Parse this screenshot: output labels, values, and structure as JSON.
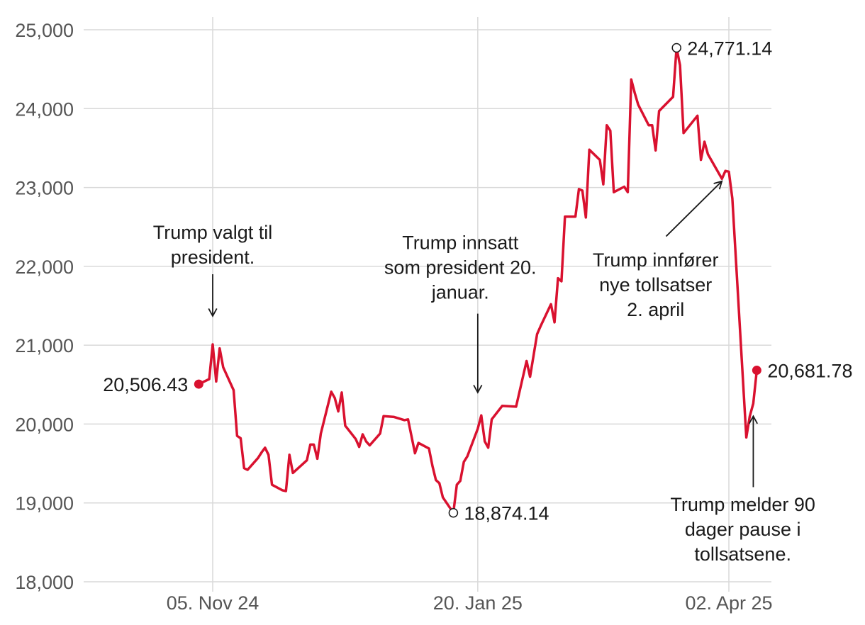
{
  "chart_data": {
    "type": "line",
    "title": "",
    "xlabel": "",
    "ylabel": "",
    "ylim": [
      18000,
      25000
    ],
    "yticks": [
      18000,
      19000,
      20000,
      21000,
      22000,
      23000,
      24000,
      25000
    ],
    "ytick_labels": [
      "18,000",
      "19,000",
      "20,000",
      "21,000",
      "22,000",
      "23,000",
      "24,000",
      "25,000"
    ],
    "grid": true,
    "color": "#d9112f",
    "xticks": [
      {
        "date": "2024-11-05",
        "label": "05. Nov 24"
      },
      {
        "date": "2025-01-20",
        "label": "20. Jan 25"
      },
      {
        "date": "2025-04-02",
        "label": "02. Apr 25"
      }
    ],
    "series": [
      {
        "values": [
          [
            "2024-11-01",
            20506
          ],
          [
            "2024-11-04",
            20570
          ],
          [
            "2024-11-05",
            21010
          ],
          [
            "2024-11-06",
            20540
          ],
          [
            "2024-11-07",
            20960
          ],
          [
            "2024-11-08",
            20720
          ],
          [
            "2024-11-11",
            20430
          ],
          [
            "2024-11-12",
            19850
          ],
          [
            "2024-11-13",
            19820
          ],
          [
            "2024-11-14",
            19440
          ],
          [
            "2024-11-15",
            19420
          ],
          [
            "2024-11-18",
            19570
          ],
          [
            "2024-11-19",
            19640
          ],
          [
            "2024-11-20",
            19700
          ],
          [
            "2024-11-21",
            19610
          ],
          [
            "2024-11-22",
            19230
          ],
          [
            "2024-11-25",
            19160
          ],
          [
            "2024-11-26",
            19150
          ],
          [
            "2024-11-27",
            19610
          ],
          [
            "2024-11-28",
            19380
          ],
          [
            "2024-12-02",
            19540
          ],
          [
            "2024-12-03",
            19740
          ],
          [
            "2024-12-04",
            19740
          ],
          [
            "2024-12-05",
            19560
          ],
          [
            "2024-12-06",
            19880
          ],
          [
            "2024-12-09",
            20410
          ],
          [
            "2024-12-10",
            20330
          ],
          [
            "2024-12-11",
            20160
          ],
          [
            "2024-12-12",
            20400
          ],
          [
            "2024-12-13",
            19980
          ],
          [
            "2024-12-16",
            19810
          ],
          [
            "2024-12-17",
            19710
          ],
          [
            "2024-12-18",
            19870
          ],
          [
            "2024-12-19",
            19780
          ],
          [
            "2024-12-20",
            19730
          ],
          [
            "2024-12-23",
            19880
          ],
          [
            "2024-12-24",
            20100
          ],
          [
            "2024-12-27",
            20090
          ],
          [
            "2024-12-30",
            20050
          ],
          [
            "2024-12-31",
            20060
          ],
          [
            "2025-01-02",
            19630
          ],
          [
            "2025-01-03",
            19760
          ],
          [
            "2025-01-06",
            19690
          ],
          [
            "2025-01-07",
            19470
          ],
          [
            "2025-01-08",
            19290
          ],
          [
            "2025-01-09",
            19250
          ],
          [
            "2025-01-10",
            19070
          ],
          [
            "2025-01-13",
            18874
          ],
          [
            "2025-01-14",
            19230
          ],
          [
            "2025-01-15",
            19280
          ],
          [
            "2025-01-16",
            19520
          ],
          [
            "2025-01-17",
            19590
          ],
          [
            "2025-01-20",
            19940
          ],
          [
            "2025-01-21",
            20110
          ],
          [
            "2025-01-22",
            19780
          ],
          [
            "2025-01-23",
            19700
          ],
          [
            "2025-01-24",
            20060
          ],
          [
            "2025-01-27",
            20230
          ],
          [
            "2025-01-31",
            20220
          ],
          [
            "2025-02-03",
            20800
          ],
          [
            "2025-02-04",
            20600
          ],
          [
            "2025-02-06",
            21140
          ],
          [
            "2025-02-07",
            21240
          ],
          [
            "2025-02-10",
            21520
          ],
          [
            "2025-02-11",
            21290
          ],
          [
            "2025-02-12",
            21850
          ],
          [
            "2025-02-13",
            21810
          ],
          [
            "2025-02-14",
            22630
          ],
          [
            "2025-02-17",
            22630
          ],
          [
            "2025-02-18",
            22980
          ],
          [
            "2025-02-19",
            22960
          ],
          [
            "2025-02-20",
            22620
          ],
          [
            "2025-02-21",
            23480
          ],
          [
            "2025-02-24",
            23350
          ],
          [
            "2025-02-25",
            23040
          ],
          [
            "2025-02-26",
            23790
          ],
          [
            "2025-02-27",
            23720
          ],
          [
            "2025-02-28",
            22940
          ],
          [
            "2025-03-03",
            23010
          ],
          [
            "2025-03-04",
            22940
          ],
          [
            "2025-03-05",
            24370
          ],
          [
            "2025-03-06",
            24200
          ],
          [
            "2025-03-07",
            24050
          ],
          [
            "2025-03-10",
            23790
          ],
          [
            "2025-03-11",
            23790
          ],
          [
            "2025-03-12",
            23470
          ],
          [
            "2025-03-13",
            23970
          ],
          [
            "2025-03-17",
            24150
          ],
          [
            "2025-03-18",
            24771
          ],
          [
            "2025-03-19",
            24550
          ],
          [
            "2025-03-20",
            23690
          ],
          [
            "2025-03-24",
            23910
          ],
          [
            "2025-03-25",
            23350
          ],
          [
            "2025-03-26",
            23580
          ],
          [
            "2025-03-27",
            23420
          ],
          [
            "2025-03-31",
            23110
          ],
          [
            "2025-04-01",
            23210
          ],
          [
            "2025-04-02",
            23200
          ],
          [
            "2025-04-03",
            22860
          ],
          [
            "2025-04-07",
            19830
          ],
          [
            "2025-04-08",
            20100
          ],
          [
            "2025-04-09",
            20260
          ],
          [
            "2025-04-10",
            20682
          ]
        ]
      }
    ],
    "points": [
      {
        "date": "2024-11-01",
        "value": 20506.43,
        "label": "20,506.43",
        "style": "filled",
        "side": "left"
      },
      {
        "date": "2025-01-13",
        "value": 18874.14,
        "label": "18,874.14",
        "style": "open",
        "side": "right"
      },
      {
        "date": "2025-03-18",
        "value": 24771.14,
        "label": "24,771.14",
        "style": "open",
        "side": "right"
      },
      {
        "date": "2025-04-10",
        "value": 20681.78,
        "label": "20,681.78",
        "style": "filled",
        "side": "right"
      }
    ],
    "annotations": [
      {
        "lines": [
          "Trump valgt til",
          "president."
        ],
        "date": "2024-11-05",
        "value": 22350,
        "arrow_from": [
          "2024-11-05",
          21900
        ],
        "arrow_to": [
          "2024-11-05",
          21370
        ]
      },
      {
        "lines": [
          "Trump innsatt",
          "som president 20.",
          "januar."
        ],
        "date": "2025-01-15",
        "value": 22220,
        "arrow_from": [
          "2025-01-20",
          21400
        ],
        "arrow_to": [
          "2025-01-20",
          20400
        ]
      },
      {
        "lines": [
          "Trump innfører",
          "nye tollsatser",
          "2. april"
        ],
        "date": "2025-03-12",
        "value": 22000,
        "arrow_from": [
          "2025-03-15",
          22380
        ],
        "arrow_to": [
          "2025-03-31",
          23080
        ]
      },
      {
        "lines": [
          "Trump melder 90",
          "dager pause i",
          "tollsatsene."
        ],
        "date": "2025-04-06",
        "value": 18900,
        "arrow_from": [
          "2025-04-09",
          19200
        ],
        "arrow_to": [
          "2025-04-09",
          20100
        ]
      }
    ]
  }
}
